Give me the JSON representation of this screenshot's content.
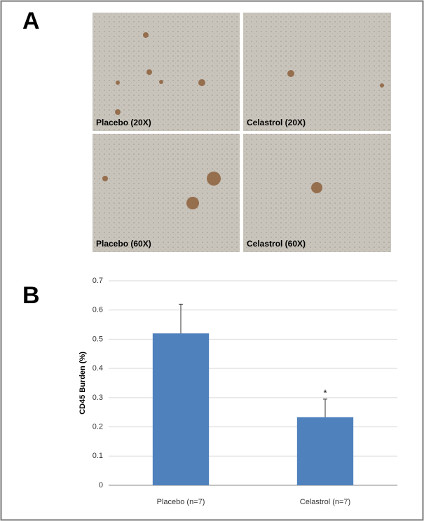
{
  "panel_labels": [
    "A",
    "B"
  ],
  "images": [
    {
      "label": "Placebo (20X)"
    },
    {
      "label": "Celastrol (20X)"
    },
    {
      "label": "Placebo (60X)"
    },
    {
      "label": "Celastrol (60X)"
    }
  ],
  "chart_data": {
    "type": "bar",
    "categories": [
      "Placebo (n=7)",
      "Celastrol (n=7)"
    ],
    "values": [
      0.52,
      0.233
    ],
    "errors": [
      0.1,
      0.062
    ],
    "color": "#4f81bd",
    "ylabel": "CD45 Burden (%)",
    "ylim": [
      0,
      0.7
    ],
    "yticks": [
      0,
      0.1,
      0.2,
      0.3,
      0.4,
      0.5,
      0.6,
      0.7
    ],
    "grid": true,
    "annotations": [
      {
        "category": 1,
        "text": "*"
      }
    ]
  }
}
